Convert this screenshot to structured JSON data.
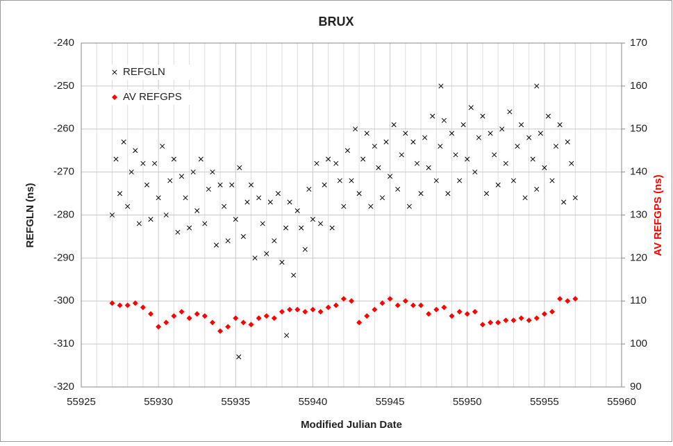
{
  "chart_data": {
    "type": "scatter",
    "title": "BRUX",
    "xlabel": "Modified Julian Date",
    "ylabel": "REFGLN (ns)",
    "y2label": "AV REFGPS (ns)",
    "xlim": [
      55925,
      55960
    ],
    "xticks": [
      55925,
      55930,
      55935,
      55940,
      55945,
      55950,
      55955,
      55960
    ],
    "ylim": [
      -320,
      -240
    ],
    "yticks": [
      -320,
      -310,
      -300,
      -290,
      -280,
      -270,
      -260,
      -250,
      -240
    ],
    "y2lim": [
      90,
      170
    ],
    "y2ticks": [
      90,
      100,
      110,
      120,
      130,
      140,
      150,
      160,
      170
    ],
    "grid": true,
    "x_minor_gridlines": true,
    "legend": "upper left",
    "series": [
      {
        "name": "REFGLN",
        "color": "#000000",
        "marker": "x",
        "axis": "y",
        "x": [
          55927,
          55927.25,
          55927.5,
          55927.75,
          55928,
          55928.25,
          55928.5,
          55928.75,
          55929,
          55929.25,
          55929.5,
          55929.75,
          55930,
          55930.25,
          55930.5,
          55930.75,
          55931,
          55931.25,
          55931.5,
          55931.75,
          55932,
          55932.25,
          55932.5,
          55932.75,
          55933,
          55933.25,
          55933.5,
          55933.75,
          55934,
          55934.25,
          55934.5,
          55934.75,
          55935,
          55935.25,
          55935.5,
          55935.75,
          55936,
          55936.25,
          55936.5,
          55936.75,
          55937,
          55937.25,
          55937.5,
          55937.75,
          55938,
          55938.25,
          55938.5,
          55938.75,
          55939,
          55939.25,
          55939.5,
          55939.75,
          55940,
          55940.25,
          55940.5,
          55940.75,
          55941,
          55941.25,
          55941.5,
          55941.75,
          55942,
          55942.25,
          55942.5,
          55942.75,
          55943,
          55943.25,
          55943.5,
          55943.75,
          55944,
          55944.25,
          55944.5,
          55944.75,
          55945,
          55945.25,
          55945.5,
          55945.75,
          55946,
          55946.25,
          55946.5,
          55946.75,
          55947,
          55947.25,
          55947.5,
          55947.75,
          55948,
          55948.25,
          55948.5,
          55948.75,
          55949,
          55949.25,
          55949.5,
          55949.75,
          55950,
          55950.25,
          55950.5,
          55950.75,
          55951,
          55951.25,
          55951.5,
          55951.75,
          55952,
          55952.25,
          55952.5,
          55952.75,
          55953,
          55953.25,
          55953.5,
          55953.75,
          55954,
          55954.25,
          55954.5,
          55954.75,
          55955,
          55955.25,
          55955.5,
          55955.75,
          55956,
          55956.25,
          55956.5,
          55956.75,
          55957,
          55935.2,
          55938.3,
          55948.3,
          55954.5
        ],
        "values": [
          -280,
          -267,
          -275,
          -263,
          -278,
          -270,
          -265,
          -282,
          -268,
          -273,
          -281,
          -268,
          -276,
          -264,
          -280,
          -272,
          -267,
          -284,
          -271,
          -276,
          -283,
          -270,
          -279,
          -267,
          -282,
          -274,
          -270,
          -287,
          -273,
          -278,
          -286,
          -273,
          -281,
          -269,
          -285,
          -277,
          -273,
          -290,
          -276,
          -282,
          -289,
          -277,
          -286,
          -275,
          -291,
          -283,
          -277,
          -294,
          -279,
          -283,
          -288,
          -274,
          -281,
          -268,
          -282,
          -273,
          -267,
          -283,
          -268,
          -272,
          -278,
          -265,
          -272,
          -260,
          -275,
          -267,
          -261,
          -278,
          -264,
          -269,
          -276,
          -263,
          -271,
          -259,
          -274,
          -266,
          -261,
          -278,
          -263,
          -268,
          -275,
          -262,
          -269,
          -257,
          -272,
          -264,
          -258,
          -275,
          -261,
          -266,
          -272,
          -259,
          -267,
          -255,
          -270,
          -262,
          -257,
          -275,
          -261,
          -266,
          -273,
          -260,
          -268,
          -256,
          -272,
          -264,
          -259,
          -276,
          -262,
          -267,
          -274,
          -261,
          -269,
          -257,
          -272,
          -264,
          -259,
          -277,
          -263,
          -268,
          -276,
          -313,
          -308,
          -250,
          -250
        ]
      },
      {
        "name": "AV REFGPS",
        "color": "#ff0000",
        "marker": "diamond",
        "axis": "y2",
        "x": [
          55927,
          55927.5,
          55928,
          55928.5,
          55929,
          55929.5,
          55930,
          55930.5,
          55931,
          55931.5,
          55932,
          55932.5,
          55933,
          55933.5,
          55934,
          55934.5,
          55935,
          55935.5,
          55936,
          55936.5,
          55937,
          55937.5,
          55938,
          55938.5,
          55939,
          55939.5,
          55940,
          55940.5,
          55941,
          55941.5,
          55942,
          55942.5,
          55943,
          55943.5,
          55944,
          55944.5,
          55945,
          55945.5,
          55946,
          55946.5,
          55947,
          55947.5,
          55948,
          55948.5,
          55949,
          55949.5,
          55950,
          55950.5,
          55951,
          55951.5,
          55952,
          55952.5,
          55953,
          55953.5,
          55954,
          55954.5,
          55955,
          55955.5,
          55956,
          55956.5,
          55957
        ],
        "values": [
          109.5,
          109,
          109,
          109.5,
          108.5,
          107,
          104,
          105,
          106.5,
          107.5,
          106,
          107,
          106.5,
          105,
          103,
          104,
          106,
          105,
          104.5,
          106,
          106.5,
          106,
          107.5,
          108,
          108,
          107.5,
          108,
          107.5,
          108.5,
          109,
          110.5,
          110,
          105,
          106.5,
          108,
          109.5,
          110.5,
          109,
          110,
          109,
          109,
          107,
          108,
          108.5,
          106.5,
          107.5,
          107,
          107.5,
          104.5,
          105,
          105,
          105.5,
          105.5,
          106,
          105.5,
          106,
          107,
          107.5,
          110.5,
          110,
          110.5
        ]
      }
    ]
  }
}
